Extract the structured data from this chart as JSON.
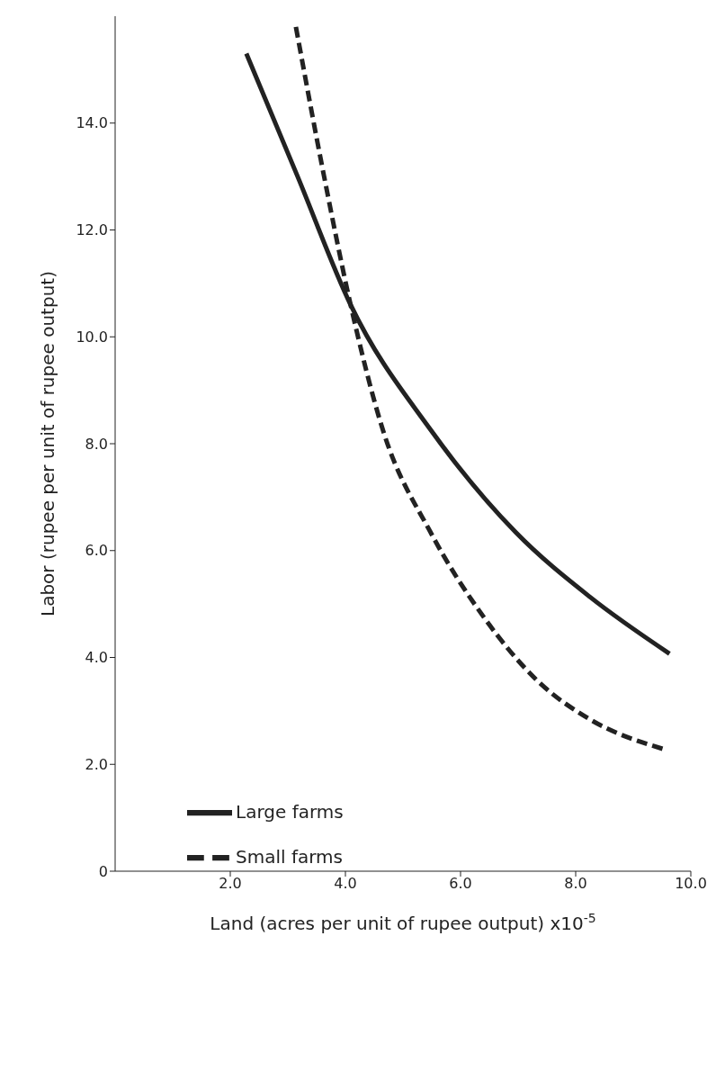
{
  "chart_data": {
    "type": "line",
    "xlabel": "Land (acres per unit of rupee output) x10$^{-5}$",
    "ylabel": "Labor (rupee per unit of rupee output)",
    "xlim": [
      0,
      10
    ],
    "xticks": [
      {
        "value": 2,
        "label": "2.0"
      },
      {
        "value": 4,
        "label": "4.0"
      },
      {
        "value": 6,
        "label": "6.0"
      },
      {
        "value": 8,
        "label": "8.0"
      },
      {
        "value": 10,
        "label": "10.0"
      }
    ],
    "ylim": [
      0,
      16
    ],
    "yticks": [
      0,
      {
        "value": 2,
        "label": "2.0"
      },
      {
        "value": 4,
        "label": "4.0"
      },
      {
        "value": 6,
        "label": "6.0"
      },
      {
        "value": 8,
        "label": "8.0"
      },
      {
        "value": 10,
        "label": "10.0"
      },
      {
        "value": 12,
        "label": "12.0"
      },
      {
        "value": 14,
        "label": "14.0"
      }
    ],
    "grid": false,
    "legend": "bottom left",
    "marker": "none",
    "series": [
      {
        "name": "Large farms",
        "color": "#222222",
        "line_style": "solid",
        "x": [
          2.28,
          3.17,
          4.09,
          5.48,
          6.96,
          8.25,
          9.63
        ],
        "values": [
          15.3,
          13.0,
          10.6,
          8.26,
          6.34,
          5.13,
          4.07
        ]
      },
      {
        "name": "Small farms",
        "color": "#222222",
        "line_style": "dashed",
        "x": [
          3.14,
          3.63,
          4.09,
          4.65,
          5.48,
          6.4,
          7.33,
          8.25,
          9.51
        ],
        "values": [
          15.8,
          13.0,
          10.6,
          8.26,
          6.34,
          4.76,
          3.57,
          2.84,
          2.29
        ]
      }
    ]
  }
}
